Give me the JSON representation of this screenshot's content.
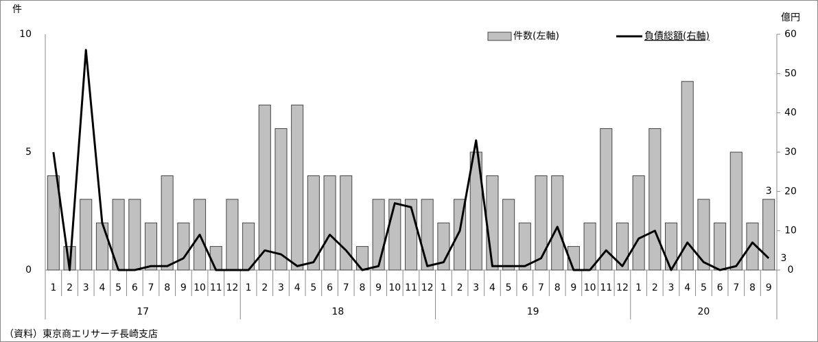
{
  "chart_data": {
    "type": "bar-line",
    "y_unit_label": "件",
    "y2_unit_label": "億円",
    "source": "（資料）東京商エリサーチ長崎支店",
    "categories": [
      "1",
      "2",
      "3",
      "4",
      "5",
      "6",
      "7",
      "8",
      "9",
      "10",
      "11",
      "12",
      "1",
      "2",
      "3",
      "4",
      "5",
      "6",
      "7",
      "8",
      "9",
      "10",
      "11",
      "12",
      "1",
      "2",
      "3",
      "4",
      "5",
      "6",
      "7",
      "8",
      "9",
      "10",
      "11",
      "12",
      "1",
      "2",
      "3",
      "4",
      "5",
      "6",
      "7",
      "8",
      "9"
    ],
    "groups": [
      "17",
      "18",
      "19",
      "20"
    ],
    "series": [
      {
        "name": "件数(左軸)",
        "type": "bar",
        "color": "#c0c0c0",
        "axis": "y",
        "values": [
          4,
          1,
          3,
          2,
          3,
          3,
          2,
          4,
          2,
          3,
          1,
          3,
          2,
          7,
          6,
          7,
          4,
          4,
          4,
          1,
          3,
          3,
          3,
          3,
          2,
          3,
          5,
          4,
          3,
          2,
          4,
          4,
          1,
          2,
          6,
          2,
          4,
          6,
          2,
          8,
          3,
          2,
          5,
          2,
          3
        ]
      },
      {
        "name": "負債総額(右軸)",
        "type": "line",
        "color": "#000000",
        "axis": "y2",
        "values": [
          30,
          0,
          56,
          12,
          0,
          0,
          1,
          1,
          3,
          9,
          0,
          0,
          0,
          5,
          4,
          1,
          2,
          9,
          5,
          0,
          1,
          17,
          16,
          1,
          2,
          10,
          33,
          1,
          1,
          1,
          3,
          11,
          0,
          0,
          5,
          1,
          8,
          10,
          0,
          7,
          2,
          0,
          1,
          7,
          3
        ]
      }
    ],
    "ylim": [
      0,
      10
    ],
    "yticks": [
      0,
      5,
      10
    ],
    "y2lim": [
      0,
      60
    ],
    "y2ticks": [
      0,
      10,
      20,
      30,
      40,
      50,
      60
    ],
    "legend": "top-right"
  }
}
